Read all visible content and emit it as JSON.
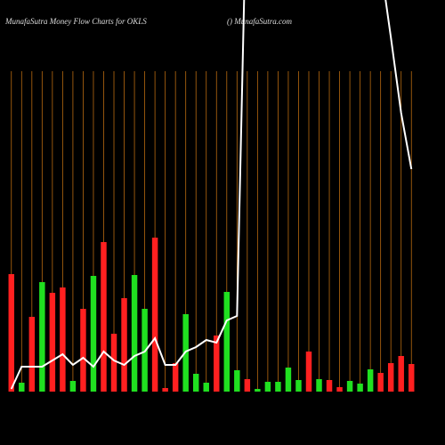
{
  "chart_data": {
    "type": "bar",
    "title": "MunafaSutra  Money Flow  Charts for OKLS",
    "subtitle": "() MunafaSutra.com",
    "ylim": [
      0,
      360
    ],
    "grid_color": "#b86a10",
    "line_color": "#ffffff",
    "values": [
      132,
      10,
      84,
      123,
      111,
      117,
      12,
      93,
      130,
      168,
      65,
      105,
      131,
      93,
      173,
      4,
      32,
      87,
      20,
      10,
      63,
      112,
      24,
      14,
      3,
      11,
      11,
      27,
      13,
      45,
      14,
      13,
      5,
      12,
      9,
      25,
      21,
      32,
      40,
      31
    ],
    "colors": [
      "#ff2020",
      "#20e020",
      "#ff2020",
      "#20e020",
      "#ff2020",
      "#ff2020",
      "#20e020",
      "#ff2020",
      "#20e020",
      "#ff2020",
      "#ff2020",
      "#ff2020",
      "#20e020",
      "#20e020",
      "#ff2020",
      "#ff2020",
      "#ff2020",
      "#20e020",
      "#20e020",
      "#20e020",
      "#ff2020",
      "#20e020",
      "#20e020",
      "#ff2020",
      "#20e020",
      "#20e020",
      "#20e020",
      "#20e020",
      "#20e020",
      "#ff2020",
      "#20e020",
      "#ff2020",
      "#ff2020",
      "#20e020",
      "#20e020",
      "#20e020",
      "#ff2020",
      "#ff2020",
      "#ff2020",
      "#ff2020"
    ],
    "line_values": [
      3,
      28,
      28,
      28,
      35,
      42,
      30,
      38,
      28,
      45,
      35,
      30,
      40,
      45,
      60,
      30,
      30,
      45,
      50,
      58,
      55,
      80,
      85,
      600,
      600,
      600,
      600,
      600,
      600,
      600,
      600,
      600,
      600,
      600,
      600,
      600,
      480,
      398,
      313,
      250
    ]
  }
}
